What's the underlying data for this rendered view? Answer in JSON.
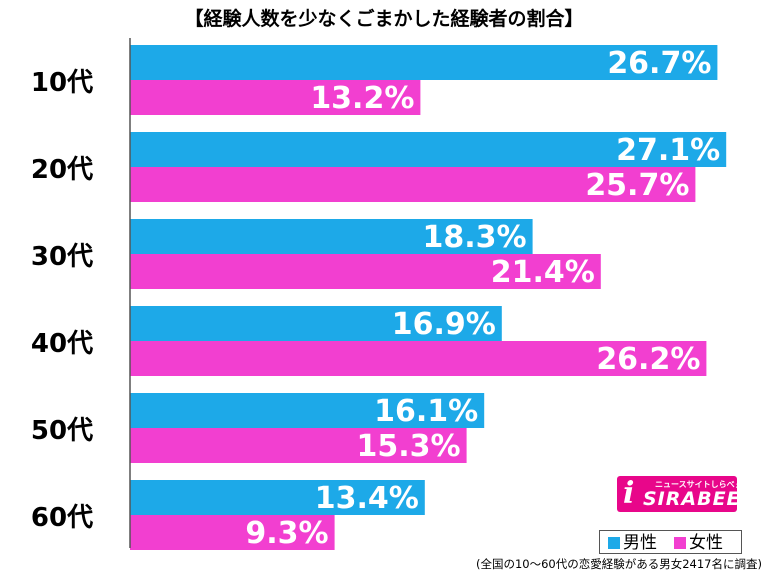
{
  "title": "【経験人数を少なくごまかした経験者の割合】",
  "footnote": "(全国の10～60代の恋愛経験がある男女2417名に調査)",
  "colors": {
    "male": "#1da9e8",
    "female": "#f23fd0",
    "axis": "#555555",
    "logo": "#e8068a"
  },
  "logo": {
    "icon": "i",
    "tagline": "ニュースサイトしらべぇ",
    "name": "SIRABEE"
  },
  "legend": {
    "male_label": "男性",
    "female_label": "女性"
  },
  "chart_data": {
    "type": "bar",
    "orientation": "horizontal",
    "title": "【経験人数を少なくごまかした経験者の割合】",
    "categories": [
      "10代",
      "20代",
      "30代",
      "40代",
      "50代",
      "60代"
    ],
    "unit": "%",
    "xlim": [
      0,
      30
    ],
    "grid": false,
    "legend_position": "bottom-right",
    "series": [
      {
        "name": "男性",
        "color": "#1da9e8",
        "values": [
          26.7,
          27.1,
          18.3,
          16.9,
          16.1,
          13.4
        ],
        "labels": [
          "26.7%",
          "27.1%",
          "18.3%",
          "16.9%",
          "16.1%",
          "13.4%"
        ]
      },
      {
        "name": "女性",
        "color": "#f23fd0",
        "values": [
          13.2,
          25.7,
          21.4,
          26.2,
          15.3,
          9.3
        ],
        "labels": [
          "13.2%",
          "25.7%",
          "21.4%",
          "26.2%",
          "15.3%",
          "9.3%"
        ]
      }
    ]
  }
}
